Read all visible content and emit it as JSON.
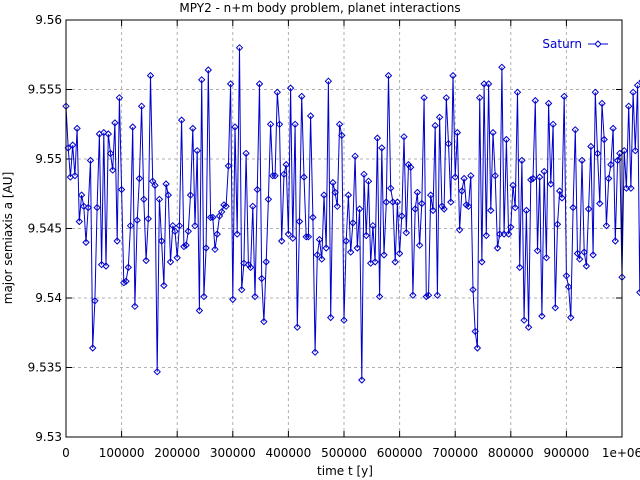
{
  "chart_data": {
    "type": "line",
    "title": "MPY2 - n+m body problem, planet interactions",
    "xlabel": "time t [y]",
    "ylabel": "major semiaxis a [AU]",
    "xlim": [
      0,
      1000000
    ],
    "ylim": [
      9.53,
      9.56
    ],
    "grid": true,
    "legend_position": "top-right",
    "x_ticks": [
      0,
      100000,
      200000,
      300000,
      400000,
      500000,
      600000,
      700000,
      800000,
      900000,
      1000000
    ],
    "x_tick_labels": [
      "0",
      "100000",
      "200000",
      "300000",
      "400000",
      "500000",
      "600000",
      "700000",
      "800000",
      "900000",
      "1e+06"
    ],
    "y_ticks": [
      9.53,
      9.535,
      9.54,
      9.545,
      9.55,
      9.555,
      9.56
    ],
    "y_tick_labels": [
      "9.53",
      "9.535",
      "9.54",
      "9.545",
      "9.55",
      "9.555",
      "9.56"
    ],
    "series": [
      {
        "name": "Saturn",
        "color": "#0000cc",
        "marker": "diamond",
        "x_start": 0,
        "x_step": 4000,
        "values": [
          9.5538,
          9.5508,
          9.5487,
          9.551,
          9.5488,
          9.5522,
          9.5455,
          9.5474,
          9.5466,
          9.544,
          9.5465,
          9.5499,
          9.5364,
          9.5398,
          9.5465,
          9.5518,
          9.5424,
          9.5519,
          9.5423,
          9.5518,
          9.5504,
          9.5492,
          9.5526,
          9.5441,
          9.5544,
          9.5478,
          9.5411,
          9.5412,
          9.5422,
          9.5452,
          9.5523,
          9.5394,
          9.5456,
          9.5486,
          9.5538,
          9.5471,
          9.5427,
          9.5457,
          9.556,
          9.5484,
          9.5481,
          9.5347,
          9.5471,
          9.5441,
          9.5409,
          9.5482,
          9.5474,
          9.5426,
          9.5452,
          9.5448,
          9.5429,
          9.5452,
          9.5528,
          9.5437,
          9.5438,
          9.5448,
          9.5474,
          9.5522,
          9.5452,
          9.5506,
          9.5391,
          9.5557,
          9.5401,
          9.5436,
          9.5564,
          9.5458,
          9.5458,
          9.5435,
          9.5446,
          9.5459,
          9.5462,
          9.5467,
          9.5466,
          9.5495,
          9.5554,
          9.5399,
          9.5523,
          9.5446,
          9.558,
          9.5406,
          9.5425,
          9.5504,
          9.5424,
          9.5422,
          9.5466,
          9.5401,
          9.5478,
          9.5554,
          9.5414,
          9.5383,
          9.5426,
          9.5471,
          9.5525,
          9.5488,
          9.5488,
          9.5548,
          9.5525,
          9.5441,
          9.5489,
          9.5496,
          9.5446,
          9.5551,
          9.5443,
          9.5525,
          9.5379,
          9.5455,
          9.5545,
          9.5487,
          9.5444,
          9.5444,
          9.5531,
          9.5458,
          9.5361,
          9.5431,
          9.5442,
          9.5428,
          9.5474,
          9.5436,
          9.5556,
          9.5386,
          9.5483,
          9.5476,
          9.5466,
          9.5525,
          9.5517,
          9.5384,
          9.5441,
          9.5474,
          9.5433,
          9.5454,
          9.5502,
          9.5436,
          9.5464,
          9.5341,
          9.5489,
          9.5445,
          9.5484,
          9.5425,
          9.5452,
          9.5426,
          9.5515,
          9.5401,
          9.5508,
          9.5431,
          9.5469,
          9.556,
          9.5479,
          9.5469,
          9.5426,
          9.5469,
          9.5432,
          9.5459,
          9.5516,
          9.5447,
          9.5496,
          9.5494,
          9.5402,
          9.5464,
          9.5476,
          9.5438,
          9.5468,
          9.5544,
          9.5401,
          9.5402,
          9.5474,
          9.5463,
          9.5524,
          9.5402,
          9.553,
          9.5466,
          9.5464,
          9.5544,
          9.5511,
          9.5469,
          9.556,
          9.5487,
          9.5519,
          9.5449,
          9.5477,
          9.5486,
          9.5467,
          9.5466,
          9.5488,
          9.5406,
          9.5376,
          9.5364,
          9.5544,
          9.5426,
          9.5554,
          9.5445,
          9.5554,
          9.5463,
          9.5519,
          9.5488,
          9.5436,
          9.5446,
          9.5566,
          9.5446,
          9.5514,
          9.5446,
          9.5451,
          9.5481,
          9.5465,
          9.5548,
          9.5422,
          9.5499,
          9.5384,
          9.5463,
          9.5379,
          9.5485,
          9.5486,
          9.5542,
          9.5434,
          9.5487,
          9.5387,
          9.5491,
          9.5429,
          9.554,
          9.5482,
          9.5525,
          9.5393,
          9.5453,
          9.5477,
          9.5472,
          9.5545,
          9.5416,
          9.5408,
          9.5386,
          9.5465,
          9.5521,
          9.5432,
          9.5428,
          9.5499,
          9.5433,
          9.5423,
          9.5464,
          9.5509,
          9.5431,
          9.5548,
          9.5504,
          9.5468,
          9.554,
          9.5514,
          9.5452,
          9.5486,
          9.5496,
          9.5522,
          9.5441,
          9.5499,
          9.5504,
          9.5415,
          9.5506,
          9.5479,
          9.5538,
          9.5479,
          9.5548,
          9.5506,
          9.5553,
          9.5404,
          9.5556,
          9.5447,
          9.5448
        ]
      }
    ]
  }
}
